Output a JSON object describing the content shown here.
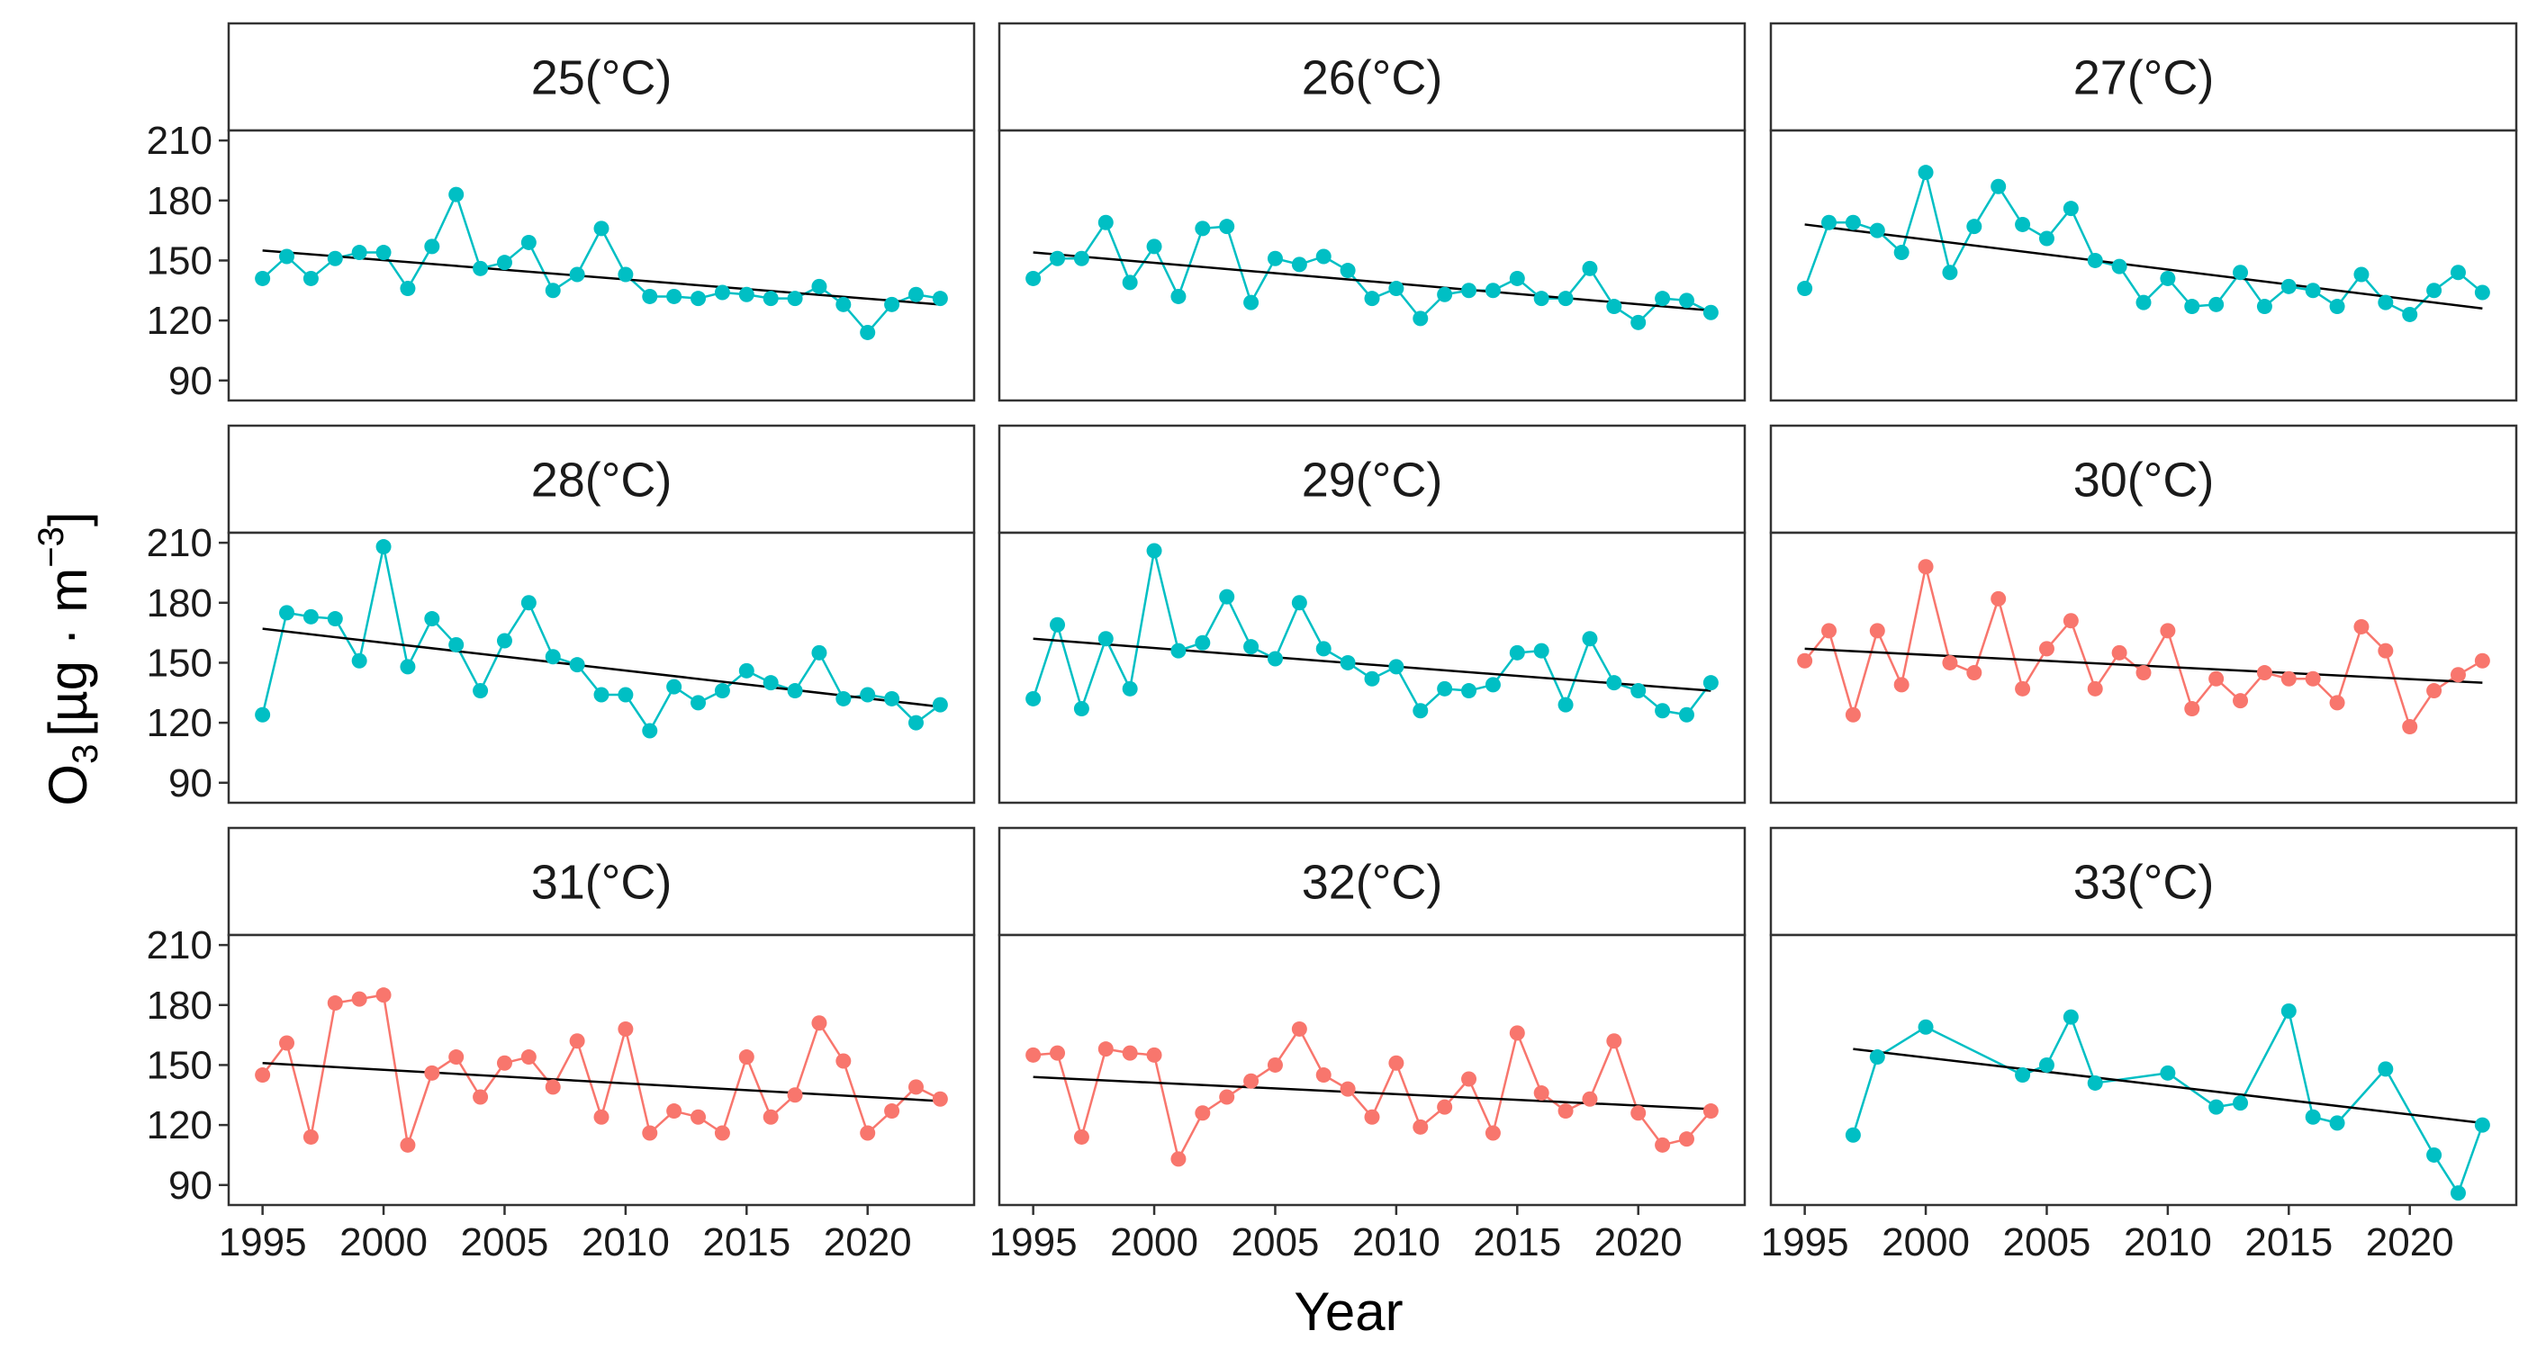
{
  "figure": {
    "xlabel": "Year",
    "ylabel_base": "O",
    "ylabel_sub": "3",
    "ylabel_unit": "[µg · m",
    "ylabel_sup": "−3",
    "ylabel_close": "]"
  },
  "chart_data": {
    "type": "line",
    "layout": "facet-grid-3x3",
    "xlabel": "Year",
    "ylabel": "O3 [µg·m−3]",
    "xlim": [
      1993.6,
      2024.4
    ],
    "ylim": [
      80,
      215
    ],
    "xticks": [
      1995,
      2000,
      2005,
      2010,
      2015,
      2020
    ],
    "xtick_labels": [
      "1995",
      "2000",
      "2005",
      "2010",
      "2015",
      "2020"
    ],
    "yticks": [
      90,
      120,
      150,
      180,
      210
    ],
    "ytick_labels": [
      "90",
      "120",
      "150",
      "180",
      "210"
    ],
    "colors": {
      "teal": "#00BFC4",
      "salmon": "#F8766D",
      "trend": "#000000"
    },
    "panels": [
      {
        "label": "25(°C)",
        "color": "#00BFC4",
        "years": [
          1995,
          1996,
          1997,
          1998,
          1999,
          2000,
          2001,
          2002,
          2003,
          2004,
          2005,
          2006,
          2007,
          2008,
          2009,
          2010,
          2011,
          2012,
          2013,
          2014,
          2015,
          2016,
          2017,
          2018,
          2019,
          2020,
          2021,
          2022,
          2023
        ],
        "values": [
          141,
          152,
          141,
          151,
          154,
          154,
          136,
          157,
          183,
          146,
          149,
          159,
          135,
          143,
          166,
          143,
          132,
          132,
          131,
          134,
          133,
          131,
          131,
          137,
          128,
          114,
          128,
          133,
          131
        ],
        "trend": [
          155,
          128
        ]
      },
      {
        "label": "26(°C)",
        "color": "#00BFC4",
        "years": [
          1995,
          1996,
          1997,
          1998,
          1999,
          2000,
          2001,
          2002,
          2003,
          2004,
          2005,
          2006,
          2007,
          2008,
          2009,
          2010,
          2011,
          2012,
          2013,
          2014,
          2015,
          2016,
          2017,
          2018,
          2019,
          2020,
          2021,
          2022,
          2023
        ],
        "values": [
          141,
          151,
          151,
          169,
          139,
          157,
          132,
          166,
          167,
          129,
          151,
          148,
          152,
          145,
          131,
          136,
          121,
          133,
          135,
          135,
          141,
          131,
          131,
          146,
          127,
          119,
          131,
          130,
          124
        ],
        "trend": [
          154,
          125
        ]
      },
      {
        "label": "27(°C)",
        "color": "#00BFC4",
        "years": [
          1995,
          1996,
          1997,
          1998,
          1999,
          2000,
          2001,
          2002,
          2003,
          2004,
          2005,
          2006,
          2007,
          2008,
          2009,
          2010,
          2011,
          2012,
          2013,
          2014,
          2015,
          2016,
          2017,
          2018,
          2019,
          2020,
          2021,
          2022,
          2023
        ],
        "values": [
          136,
          169,
          169,
          165,
          154,
          194,
          144,
          167,
          187,
          168,
          161,
          176,
          150,
          147,
          129,
          141,
          127,
          128,
          144,
          127,
          137,
          135,
          127,
          143,
          129,
          123,
          135,
          144,
          134
        ],
        "trend": [
          168,
          126
        ]
      },
      {
        "label": "28(°C)",
        "color": "#00BFC4",
        "years": [
          1995,
          1996,
          1997,
          1998,
          1999,
          2000,
          2001,
          2002,
          2003,
          2004,
          2005,
          2006,
          2007,
          2008,
          2009,
          2010,
          2011,
          2012,
          2013,
          2014,
          2015,
          2016,
          2017,
          2018,
          2019,
          2020,
          2021,
          2022,
          2023
        ],
        "values": [
          124,
          175,
          173,
          172,
          151,
          208,
          148,
          172,
          159,
          136,
          161,
          180,
          153,
          149,
          134,
          134,
          116,
          138,
          130,
          136,
          146,
          140,
          136,
          155,
          132,
          134,
          132,
          120,
          129
        ],
        "trend": [
          167,
          128
        ]
      },
      {
        "label": "29(°C)",
        "color": "#00BFC4",
        "years": [
          1995,
          1996,
          1997,
          1998,
          1999,
          2000,
          2001,
          2002,
          2003,
          2004,
          2005,
          2006,
          2007,
          2008,
          2009,
          2010,
          2011,
          2012,
          2013,
          2014,
          2015,
          2016,
          2017,
          2018,
          2019,
          2020,
          2021,
          2022,
          2023
        ],
        "values": [
          132,
          169,
          127,
          162,
          137,
          206,
          156,
          160,
          183,
          158,
          152,
          180,
          157,
          150,
          142,
          148,
          126,
          137,
          136,
          139,
          155,
          156,
          129,
          162,
          140,
          136,
          126,
          124,
          140
        ],
        "trend": [
          162,
          136
        ]
      },
      {
        "label": "30(°C)",
        "color": "#F8766D",
        "years": [
          1995,
          1996,
          1997,
          1998,
          1999,
          2000,
          2001,
          2002,
          2003,
          2004,
          2005,
          2006,
          2007,
          2008,
          2009,
          2010,
          2011,
          2012,
          2013,
          2014,
          2015,
          2016,
          2017,
          2018,
          2019,
          2020,
          2021,
          2022,
          2023
        ],
        "values": [
          151,
          166,
          124,
          166,
          139,
          198,
          150,
          145,
          182,
          137,
          157,
          171,
          137,
          155,
          145,
          166,
          127,
          142,
          131,
          145,
          142,
          142,
          130,
          168,
          156,
          118,
          136,
          144,
          151
        ],
        "trend": [
          157,
          140
        ]
      },
      {
        "label": "31(°C)",
        "color": "#F8766D",
        "years": [
          1995,
          1996,
          1997,
          1998,
          1999,
          2000,
          2001,
          2002,
          2003,
          2004,
          2005,
          2006,
          2007,
          2008,
          2009,
          2010,
          2011,
          2012,
          2013,
          2014,
          2015,
          2016,
          2017,
          2018,
          2019,
          2020,
          2021,
          2022,
          2023
        ],
        "values": [
          145,
          161,
          114,
          181,
          183,
          185,
          110,
          146,
          154,
          134,
          151,
          154,
          139,
          162,
          124,
          168,
          116,
          127,
          124,
          116,
          154,
          124,
          135,
          171,
          152,
          116,
          127,
          139,
          133
        ],
        "trend": [
          151,
          132
        ]
      },
      {
        "label": "32(°C)",
        "color": "#F8766D",
        "years": [
          1995,
          1996,
          1997,
          1998,
          1999,
          2000,
          2001,
          2002,
          2003,
          2004,
          2005,
          2006,
          2007,
          2008,
          2009,
          2010,
          2011,
          2012,
          2013,
          2014,
          2015,
          2016,
          2017,
          2018,
          2019,
          2020,
          2021,
          2022,
          2023
        ],
        "values": [
          155,
          156,
          114,
          158,
          156,
          155,
          103,
          126,
          134,
          142,
          150,
          168,
          145,
          138,
          124,
          151,
          119,
          129,
          143,
          116,
          166,
          136,
          127,
          133,
          162,
          126,
          110,
          113,
          127
        ],
        "trend": [
          144,
          128
        ]
      },
      {
        "label": "33(°C)",
        "color": "#00BFC4",
        "years": [
          1997,
          1998,
          2000,
          2004,
          2005,
          2006,
          2007,
          2010,
          2012,
          2013,
          2015,
          2016,
          2017,
          2019,
          2021,
          2022,
          2023
        ],
        "values": [
          115,
          154,
          169,
          145,
          150,
          174,
          141,
          146,
          129,
          131,
          177,
          124,
          121,
          148,
          105,
          86,
          120
        ],
        "trend": [
          158,
          121
        ]
      }
    ]
  }
}
